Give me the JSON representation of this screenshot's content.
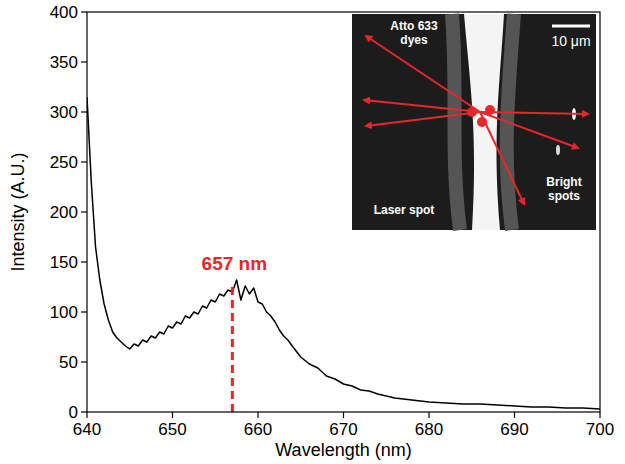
{
  "chart_data": {
    "type": "line",
    "x_label": "Wavelength (nm)",
    "y_label": "Intensity (A.U.)",
    "color": "#000000",
    "x": [
      640,
      640.5,
      641,
      641.5,
      642,
      642.5,
      643,
      643.5,
      644,
      644.5,
      645,
      645.5,
      646,
      646.5,
      647,
      647.5,
      648,
      648.5,
      649,
      649.5,
      650,
      650.5,
      651,
      651.5,
      652,
      652.5,
      653,
      653.5,
      654,
      654.5,
      655,
      655.5,
      656,
      656.5,
      657,
      657.5,
      658,
      658.5,
      659,
      659.5,
      660,
      660.5,
      661,
      661.5,
      662,
      662.5,
      663,
      663.5,
      664,
      665,
      666,
      667,
      668,
      669,
      670,
      671,
      672,
      673,
      674,
      675,
      676,
      677,
      678,
      679,
      680,
      682,
      684,
      686,
      688,
      690,
      692,
      694,
      696,
      698,
      700
    ],
    "values": [
      315,
      230,
      165,
      132,
      108,
      92,
      80,
      74,
      70,
      66,
      63,
      68,
      66,
      72,
      70,
      76,
      74,
      80,
      78,
      86,
      84,
      90,
      88,
      96,
      94,
      100,
      98,
      106,
      104,
      112,
      110,
      118,
      116,
      122,
      120,
      132,
      112,
      126,
      118,
      124,
      110,
      108,
      100,
      96,
      90,
      82,
      76,
      72,
      66,
      55,
      48,
      44,
      36,
      33,
      28,
      26,
      22,
      21,
      18,
      16,
      14,
      13,
      12,
      11,
      10,
      9,
      8,
      8,
      7,
      6,
      5,
      5,
      4,
      4,
      3
    ],
    "xlim": [
      640,
      700
    ],
    "xticks": [
      640,
      650,
      660,
      670,
      680,
      690,
      700
    ],
    "ylim": [
      0,
      400
    ],
    "yticks": [
      0,
      50,
      100,
      150,
      200,
      250,
      300,
      350,
      400
    ],
    "annotations": [
      {
        "text": "657 nm",
        "x": 657,
        "y": 130,
        "color": "#e8262b",
        "line_style": "dashed"
      }
    ],
    "inset": {
      "labels": [
        "Atto 633 dyes",
        "Laser spot",
        "Bright spots"
      ],
      "scale_bar": "10 μm"
    }
  }
}
